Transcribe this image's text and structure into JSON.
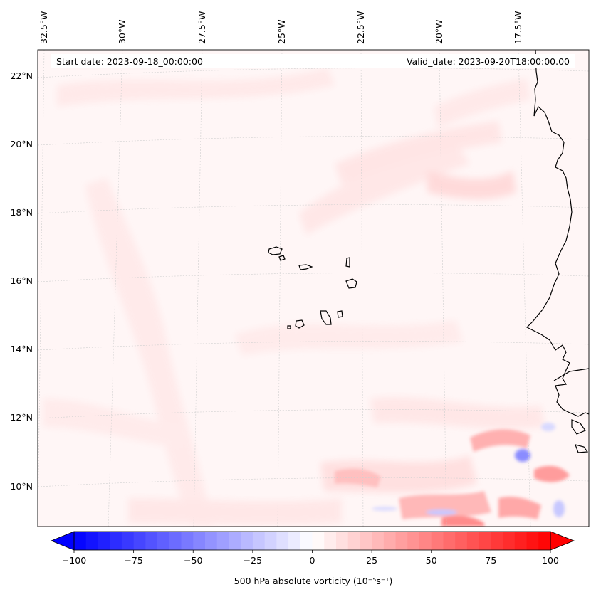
{
  "map": {
    "start_date": "Start date: 2023-09-18_00:00:00",
    "valid_date": "Valid_date: 2023-09-20T18:00:00.00",
    "lon_labels": [
      "32.5°W",
      "30°W",
      "27.5°W",
      "25°W",
      "22.5°W",
      "20°W",
      "17.5°W"
    ],
    "lat_labels": [
      "22°N",
      "20°N",
      "18°N",
      "16°N",
      "14°N",
      "12°N",
      "10°N"
    ],
    "field": "500 hPa absolute vorticity"
  },
  "colorbar": {
    "label": "500 hPa absolute vorticity (10⁻⁵s⁻¹)",
    "min": -100,
    "max": 100,
    "ticks": [
      "−100",
      "−75",
      "−50",
      "−25",
      "0",
      "25",
      "50",
      "75",
      "100"
    ],
    "low_color": "#0000ff",
    "high_color": "#ff0000"
  }
}
